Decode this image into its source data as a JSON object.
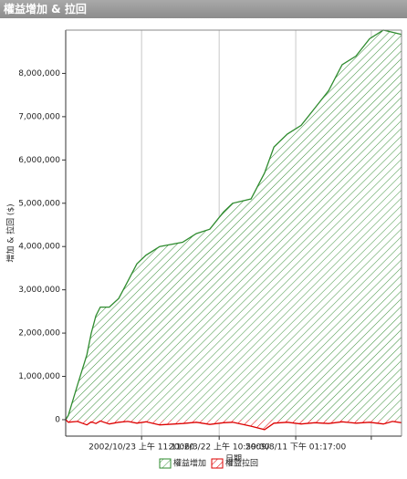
{
  "chart_data": {
    "type": "area",
    "title": "權益增加 & 拉回",
    "x_label": "日期",
    "y_label": "增加 & 拉回 ($)",
    "x": [
      0,
      0.8,
      3.5,
      6.3,
      7.6,
      9.0,
      10.3,
      13.0,
      15.8,
      18.5,
      21.2,
      23.9,
      28.0,
      34.8,
      38.9,
      42.9,
      47.0,
      49.7,
      55.2,
      59.2,
      62.0,
      66.0,
      70.1,
      74.2,
      78.3,
      82.3,
      86.4,
      90.5,
      94.6,
      97.3,
      100
    ],
    "series": [
      {
        "name": "權益增加",
        "color": "#2e8b2e",
        "values": [
          0,
          100000,
          800000,
          1500000,
          2000000,
          2400000,
          2600000,
          2600000,
          2800000,
          3200000,
          3600000,
          3800000,
          4000000,
          4100000,
          4300000,
          4400000,
          4800000,
          5000000,
          5100000,
          5700000,
          6300000,
          6600000,
          6800000,
          7200000,
          7600000,
          8200000,
          8400000,
          8800000,
          9000000,
          8950000,
          8900000
        ]
      },
      {
        "name": "權益拉回",
        "color": "#dd0000",
        "values": [
          0,
          -60000,
          -40000,
          -120000,
          -50000,
          -90000,
          -30000,
          -100000,
          -60000,
          -40000,
          -80000,
          -50000,
          -120000,
          -90000,
          -60000,
          -110000,
          -70000,
          -60000,
          -150000,
          -230000,
          -80000,
          -60000,
          -100000,
          -70000,
          -90000,
          -50000,
          -80000,
          -60000,
          -100000,
          -40000,
          -70000
        ]
      }
    ],
    "xlim": [
      0,
      100
    ],
    "xticks": [
      {
        "value": 22.6,
        "label": "2002/10/23 上午 11:11:20"
      },
      {
        "value": 45.7,
        "label": "2006/3/22 上午 10:59:00"
      },
      {
        "value": 68.5,
        "label": "2009/8/11 下午 01:17:00"
      },
      {
        "value": 91.0,
        "label": null
      }
    ],
    "ylim": [
      -380000,
      9000000
    ],
    "yticks": [
      {
        "value": 0,
        "label": "0"
      },
      {
        "value": 1000000,
        "label": "1,000,000"
      },
      {
        "value": 2000000,
        "label": "2,000,000"
      },
      {
        "value": 3000000,
        "label": "3,000,000"
      },
      {
        "value": 4000000,
        "label": "4,000,000"
      },
      {
        "value": 5000000,
        "label": "5,000,000"
      },
      {
        "value": 6000000,
        "label": "6,000,000"
      },
      {
        "value": 7000000,
        "label": "7,000,000"
      },
      {
        "value": 8000000,
        "label": "8,000,000"
      }
    ],
    "x_grid": true
  }
}
